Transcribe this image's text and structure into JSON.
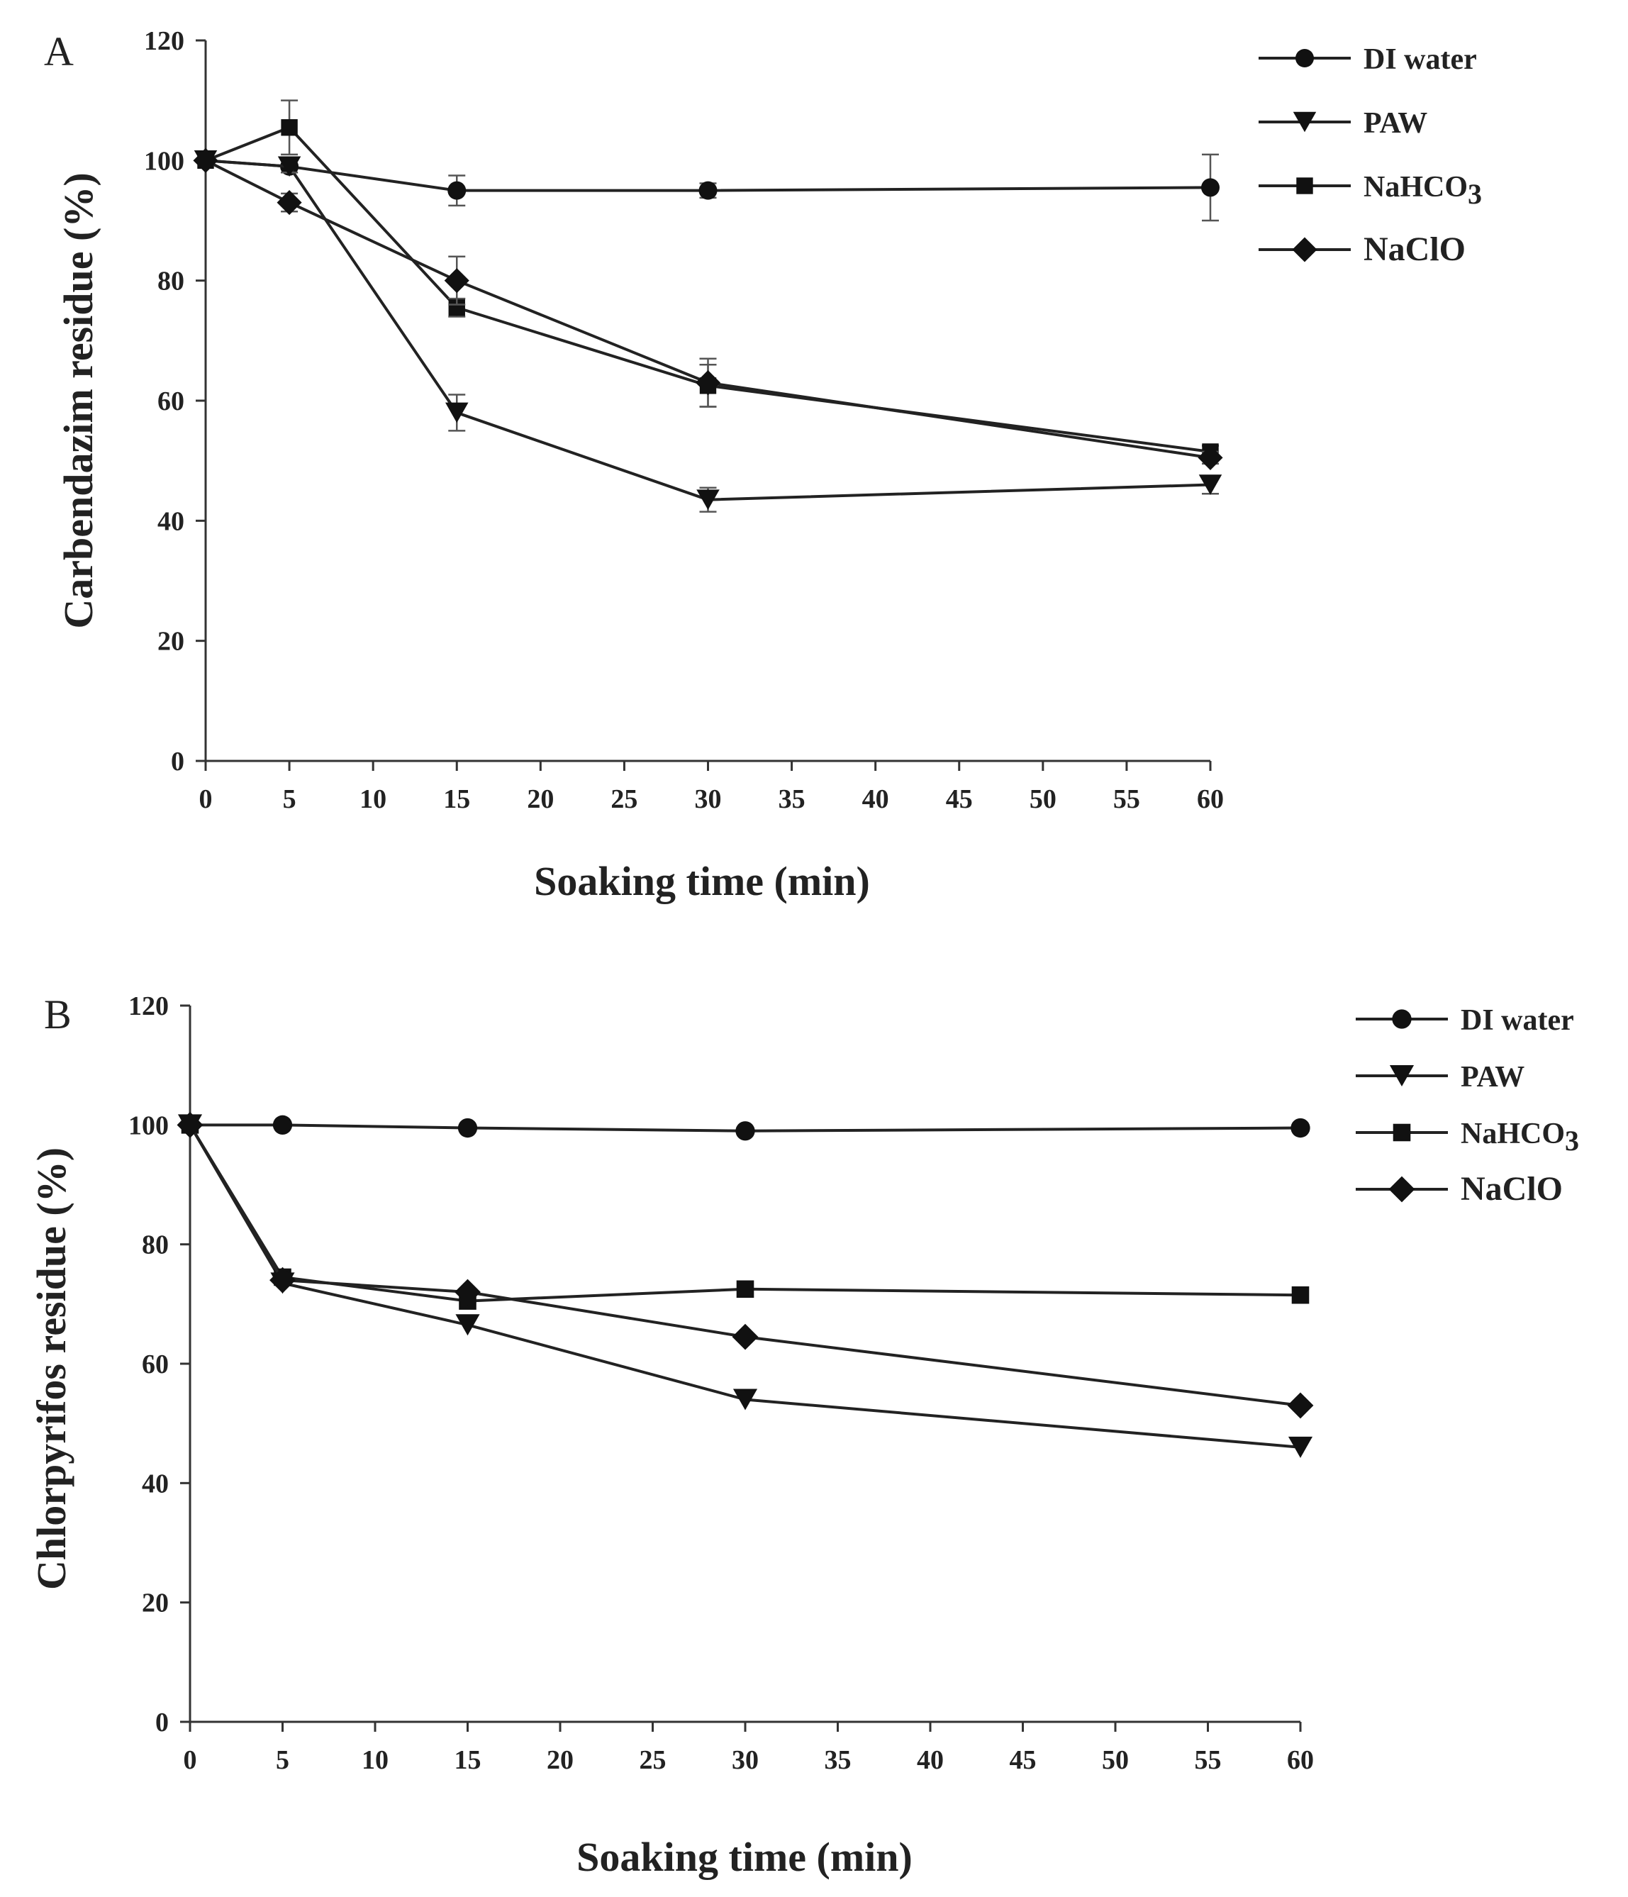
{
  "chart_data": [
    {
      "type": "line",
      "panel": "A",
      "xlabel": "Soaking time (min)",
      "ylabel": "Carbendazim residue (%)",
      "xlim": [
        0,
        60
      ],
      "ylim": [
        0,
        120
      ],
      "xticks": [
        0,
        5,
        10,
        15,
        20,
        25,
        30,
        35,
        40,
        45,
        50,
        55,
        60
      ],
      "yticks": [
        0,
        20,
        40,
        60,
        80,
        100,
        120
      ],
      "x": [
        0,
        5,
        15,
        30,
        60
      ],
      "legend_position": "top-right",
      "series": [
        {
          "name": "DI water",
          "marker": "circle",
          "values": [
            100,
            99,
            95,
            95,
            95.5
          ],
          "errors": [
            0,
            1,
            2.5,
            1.2,
            5.5
          ]
        },
        {
          "name": "PAW",
          "marker": "triangle-down",
          "values": [
            100,
            99,
            58,
            43.5,
            46
          ],
          "errors": [
            0,
            1,
            3,
            2,
            1.5
          ]
        },
        {
          "name": "NaHCO",
          "name_sub": "3",
          "marker": "square",
          "values": [
            100,
            105.5,
            75.5,
            62.5,
            51.5
          ],
          "errors": [
            0,
            4.5,
            1.5,
            3.5,
            1
          ]
        },
        {
          "name": "NaClO",
          "marker": "diamond",
          "values": [
            100,
            93,
            80,
            63,
            50.5
          ],
          "errors": [
            0,
            1.5,
            4,
            4,
            1
          ]
        }
      ]
    },
    {
      "type": "line",
      "panel": "B",
      "xlabel": "Soaking time (min)",
      "ylabel": "Chlorpyrifos residue (%)",
      "xlim": [
        0,
        60
      ],
      "ylim": [
        0,
        120
      ],
      "xticks": [
        0,
        5,
        10,
        15,
        20,
        25,
        30,
        35,
        40,
        45,
        50,
        55,
        60
      ],
      "yticks": [
        0,
        20,
        40,
        60,
        80,
        100,
        120
      ],
      "x": [
        0,
        5,
        15,
        30,
        60
      ],
      "legend_position": "top-right",
      "series": [
        {
          "name": "DI water",
          "marker": "circle",
          "values": [
            100,
            100,
            99.5,
            99,
            99.5
          ],
          "errors": [
            0,
            0,
            0,
            0,
            0
          ]
        },
        {
          "name": "PAW",
          "marker": "triangle-down",
          "values": [
            100,
            73.5,
            66.5,
            54,
            46
          ],
          "errors": [
            0,
            0,
            0,
            0,
            0
          ]
        },
        {
          "name": "NaHCO",
          "name_sub": "3",
          "marker": "square",
          "values": [
            100,
            74.5,
            70.5,
            72.5,
            71.5
          ],
          "errors": [
            0,
            0,
            0,
            0,
            0
          ]
        },
        {
          "name": "NaClO",
          "marker": "diamond",
          "values": [
            100,
            74,
            72,
            64.5,
            53
          ],
          "errors": [
            0,
            0,
            0,
            0,
            0
          ]
        }
      ]
    }
  ]
}
